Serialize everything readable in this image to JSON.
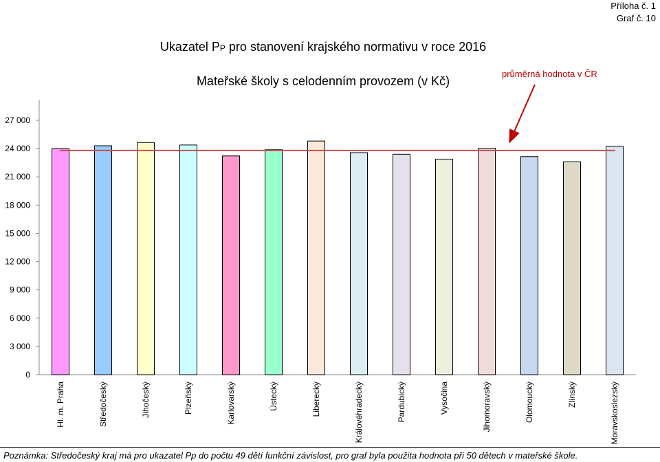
{
  "header": {
    "appendix": "Příloha č. 1",
    "graph": "Graf č. 10"
  },
  "chart_data": {
    "type": "bar",
    "title_main": "Ukazatel P",
    "title_sub_char": "P",
    "title_rest": " pro stanovení krajského normativu v roce 2016",
    "subtitle": "Mateřské školy s celodenním provozem (v Kč)",
    "categories": [
      "Hl. m. Praha",
      "Středočeský",
      "Jihočeský",
      "Plzeňský",
      "Karlovarský",
      "Ústecký",
      "Liberecký",
      "Královéhradecký",
      "Pardubický",
      "Vysočina",
      "Jihomoravský",
      "Olomoucký",
      "Zlínský",
      "Moravskoslezský"
    ],
    "values": [
      24000,
      24300,
      24650,
      24380,
      23220,
      23880,
      24800,
      23570,
      23400,
      22880,
      24030,
      23150,
      22600,
      24240
    ],
    "bar_colors": [
      "#ff99ff",
      "#99ccff",
      "#ffffcc",
      "#ccffff",
      "#ff99cc",
      "#99ffcc",
      "#fde9d9",
      "#daeef3",
      "#e5e0ec",
      "#ebf1dd",
      "#f2dcdb",
      "#c6d9f1",
      "#ddd9c4",
      "#dbe5f1"
    ],
    "average": {
      "label": "průměrná hodnota v ČR",
      "value": 23800,
      "color": "#c0504d"
    },
    "ylim": [
      0,
      27000
    ],
    "yticks": [
      0,
      3000,
      6000,
      9000,
      12000,
      15000,
      18000,
      21000,
      24000,
      27000
    ],
    "ytick_labels": [
      "0",
      "3 000",
      "6 000",
      "9 000",
      "12 000",
      "15 000",
      "18 000",
      "21 000",
      "24 000",
      "27 000"
    ],
    "grid": false,
    "xlabel": "",
    "ylabel": ""
  },
  "note": "Poznámka: Středočeský kraj má pro ukazatel Pp do počtu 49 dětí funkční závislost, pro graf byla použita hodnota při 50 dětech v mateřské škole."
}
